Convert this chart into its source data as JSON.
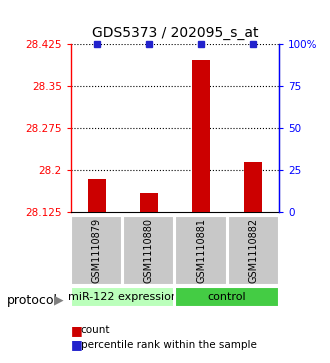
{
  "title": "GDS5373 / 202095_s_at",
  "samples": [
    "GSM1110879",
    "GSM1110880",
    "GSM1110881",
    "GSM1110882"
  ],
  "bar_values": [
    28.185,
    28.16,
    28.395,
    28.215
  ],
  "y_min": 28.125,
  "left_yticks": [
    28.125,
    28.2,
    28.275,
    28.35,
    28.425
  ],
  "right_yticks": [
    0,
    25,
    50,
    75,
    100
  ],
  "bar_color": "#cc0000",
  "dot_color": "#2222cc",
  "title_fontsize": 10,
  "tick_fontsize": 7.5,
  "sample_fontsize": 7,
  "group_label_fontsize": 8,
  "bar_width": 0.35,
  "group_names": [
    "miR-122 expression",
    "control"
  ],
  "group_colors": [
    "#bbffbb",
    "#44cc44"
  ],
  "sample_box_color": "#c8c8c8",
  "legend_fontsize": 7.5,
  "protocol_fontsize": 9
}
